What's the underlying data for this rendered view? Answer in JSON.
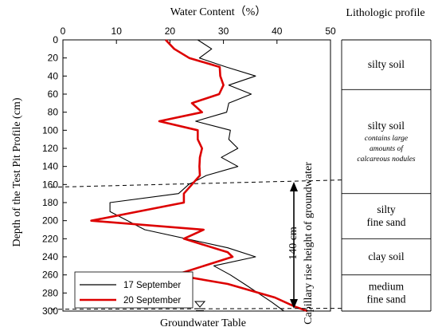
{
  "chart_data": {
    "type": "line",
    "title": "",
    "xlabel": "Water Content（%）",
    "ylabel": "Depth of the Test Pit Profile (cm)",
    "xlim": [
      0,
      50
    ],
    "ylim": [
      0,
      300
    ],
    "x_ticks": [
      "0",
      "10",
      "20",
      "30",
      "40",
      "50"
    ],
    "y_ticks": [
      "0",
      "20",
      "40",
      "60",
      "80",
      "100",
      "120",
      "140",
      "160",
      "180",
      "200",
      "220",
      "240",
      "260",
      "280",
      "300"
    ],
    "series": [
      {
        "name": "17 September",
        "color": "#000000",
        "points": [
          [
            25.2,
            0
          ],
          [
            27.8,
            10
          ],
          [
            25.5,
            20
          ],
          [
            30.5,
            30
          ],
          [
            36.0,
            40
          ],
          [
            31.0,
            50
          ],
          [
            35.2,
            60
          ],
          [
            31.0,
            70
          ],
          [
            30.6,
            80
          ],
          [
            24.8,
            90
          ],
          [
            31.3,
            100
          ],
          [
            31.0,
            110
          ],
          [
            32.7,
            120
          ],
          [
            29.6,
            130
          ],
          [
            32.7,
            140
          ],
          [
            26.8,
            150
          ],
          [
            23.5,
            160
          ],
          [
            21.6,
            170
          ],
          [
            8.8,
            180
          ],
          [
            8.8,
            190
          ],
          [
            15.3,
            210
          ],
          [
            30.8,
            230
          ],
          [
            36.0,
            240
          ],
          [
            28.2,
            250
          ],
          [
            31.3,
            260
          ],
          [
            33.9,
            270
          ],
          [
            39.0,
            290
          ],
          [
            41.3,
            300
          ]
        ]
      },
      {
        "name": "20 September",
        "color": "#dd0000",
        "points": [
          [
            19.2,
            0
          ],
          [
            20.8,
            10
          ],
          [
            23.6,
            20
          ],
          [
            29.3,
            30
          ],
          [
            29.4,
            40
          ],
          [
            30.0,
            50
          ],
          [
            29.2,
            60
          ],
          [
            24.1,
            70
          ],
          [
            26.0,
            80
          ],
          [
            18.0,
            90
          ],
          [
            25.2,
            100
          ],
          [
            25.2,
            110
          ],
          [
            26.0,
            120
          ],
          [
            25.6,
            130
          ],
          [
            25.5,
            140
          ],
          [
            25.6,
            150
          ],
          [
            24.1,
            160
          ],
          [
            22.6,
            170
          ],
          [
            22.6,
            180
          ],
          [
            5.3,
            200
          ],
          [
            26.3,
            210
          ],
          [
            22.6,
            220
          ],
          [
            30.8,
            235
          ],
          [
            31.7,
            240
          ],
          [
            21.0,
            260
          ],
          [
            30.8,
            270
          ],
          [
            39.6,
            285
          ],
          [
            43.3,
            295
          ],
          [
            45.7,
            300
          ]
        ]
      }
    ],
    "annotations": {
      "groundwater_table": "Groundwater Table",
      "capillary_rise": "Capillary rise height of groundwater",
      "capillary_value": "140 cm"
    },
    "legend_position": "bottom-left"
  },
  "lithologic": {
    "title": "Lithologic profile",
    "layers": [
      {
        "lines": [
          "silty soil"
        ],
        "note": [],
        "top": 0,
        "bottom": 55
      },
      {
        "lines": [
          "silty soil"
        ],
        "note": [
          "contains large",
          "amounts of",
          "calcareous nodules"
        ],
        "top": 55,
        "bottom": 170
      },
      {
        "lines": [
          "silty",
          "fine sand"
        ],
        "note": [],
        "top": 170,
        "bottom": 220
      },
      {
        "lines": [
          "clay soil"
        ],
        "note": [],
        "top": 220,
        "bottom": 260
      },
      {
        "lines": [
          "medium",
          "fine sand"
        ],
        "note": [],
        "top": 260,
        "bottom": 300
      }
    ]
  }
}
